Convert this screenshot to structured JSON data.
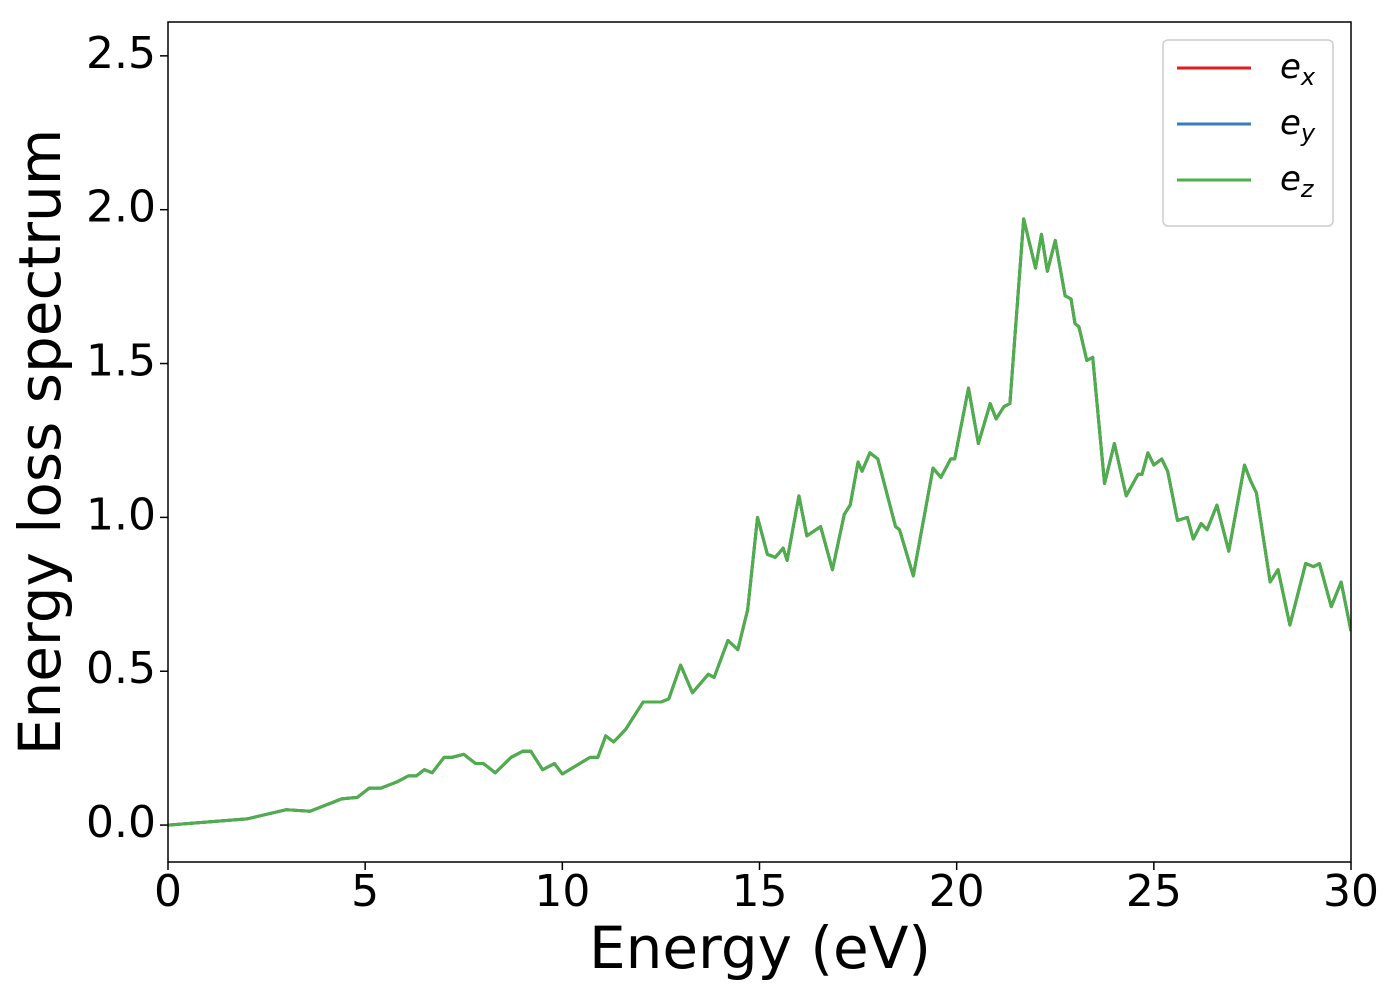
{
  "chart_data": {
    "type": "line",
    "xlabel": "Energy (eV)",
    "ylabel": "Energy loss spectrum",
    "x": [
      0,
      1,
      2,
      3,
      3.6,
      4.4,
      4.8,
      5.1,
      5.4,
      5.8,
      6.1,
      6.3,
      6.5,
      6.7,
      7.0,
      7.2,
      7.5,
      7.8,
      8.0,
      8.3,
      8.7,
      9.0,
      9.2,
      9.5,
      9.8,
      10.0,
      10.7,
      10.9,
      11.1,
      11.3,
      11.6,
      12.05,
      12.5,
      12.7,
      13.0,
      13.3,
      13.7,
      13.85,
      14.2,
      14.45,
      14.7,
      14.95,
      15.2,
      15.4,
      15.6,
      15.7,
      16.0,
      16.2,
      16.55,
      16.85,
      17.15,
      17.3,
      17.5,
      17.6,
      17.8,
      18.0,
      18.45,
      18.55,
      18.9,
      19.4,
      19.6,
      19.85,
      19.95,
      20.3,
      20.55,
      20.85,
      21.0,
      21.2,
      21.35,
      21.7,
      22.0,
      22.15,
      22.3,
      22.5,
      22.75,
      22.9,
      23.0,
      23.1,
      23.3,
      23.45,
      23.75,
      24.0,
      24.3,
      24.6,
      24.7,
      24.85,
      25.0,
      25.2,
      25.35,
      25.6,
      25.85,
      26.0,
      26.2,
      26.35,
      26.6,
      26.9,
      27.3,
      27.45,
      27.6,
      27.95,
      28.15,
      28.45,
      28.85,
      29.05,
      29.2,
      29.5,
      29.75,
      30.0
    ],
    "series": [
      {
        "name": "ex",
        "color": "#e41a1c",
        "values": [
          0,
          0.01,
          0.02,
          0.05,
          0.045,
          0.085,
          0.09,
          0.12,
          0.12,
          0.14,
          0.16,
          0.16,
          0.18,
          0.17,
          0.22,
          0.22,
          0.23,
          0.2,
          0.2,
          0.17,
          0.22,
          0.24,
          0.24,
          0.18,
          0.2,
          0.166,
          0.22,
          0.22,
          0.29,
          0.27,
          0.31,
          0.4,
          0.4,
          0.41,
          0.52,
          0.43,
          0.49,
          0.48,
          0.6,
          0.57,
          0.7,
          1.0,
          0.88,
          0.87,
          0.9,
          0.86,
          1.07,
          0.94,
          0.97,
          0.83,
          1.01,
          1.04,
          1.18,
          1.15,
          1.21,
          1.19,
          0.97,
          0.96,
          0.81,
          1.16,
          1.13,
          1.19,
          1.19,
          1.42,
          1.24,
          1.37,
          1.32,
          1.36,
          1.37,
          1.97,
          1.81,
          1.92,
          1.8,
          1.9,
          1.72,
          1.71,
          1.63,
          1.62,
          1.51,
          1.52,
          1.11,
          1.24,
          1.07,
          1.14,
          1.14,
          1.21,
          1.17,
          1.19,
          1.15,
          0.99,
          1.0,
          0.93,
          0.98,
          0.96,
          1.04,
          0.89,
          1.17,
          1.12,
          1.08,
          0.79,
          0.83,
          0.65,
          0.85,
          0.84,
          0.85,
          0.71,
          0.79,
          0.63
        ]
      },
      {
        "name": "ey",
        "color": "#377eb8",
        "values": [
          0,
          0.01,
          0.02,
          0.05,
          0.045,
          0.085,
          0.09,
          0.12,
          0.12,
          0.14,
          0.16,
          0.16,
          0.18,
          0.17,
          0.22,
          0.22,
          0.23,
          0.2,
          0.2,
          0.17,
          0.22,
          0.24,
          0.24,
          0.18,
          0.2,
          0.166,
          0.22,
          0.22,
          0.29,
          0.27,
          0.31,
          0.4,
          0.4,
          0.41,
          0.52,
          0.43,
          0.49,
          0.48,
          0.6,
          0.57,
          0.7,
          1.0,
          0.88,
          0.87,
          0.9,
          0.86,
          1.07,
          0.94,
          0.97,
          0.83,
          1.01,
          1.04,
          1.18,
          1.15,
          1.21,
          1.19,
          0.97,
          0.96,
          0.81,
          1.16,
          1.13,
          1.19,
          1.19,
          1.42,
          1.24,
          1.37,
          1.32,
          1.36,
          1.37,
          1.97,
          1.81,
          1.92,
          1.8,
          1.9,
          1.72,
          1.71,
          1.63,
          1.62,
          1.51,
          1.52,
          1.11,
          1.24,
          1.07,
          1.14,
          1.14,
          1.21,
          1.17,
          1.19,
          1.15,
          0.99,
          1.0,
          0.93,
          0.98,
          0.96,
          1.04,
          0.89,
          1.17,
          1.12,
          1.08,
          0.79,
          0.83,
          0.65,
          0.85,
          0.84,
          0.85,
          0.71,
          0.79,
          0.63
        ]
      },
      {
        "name": "ez",
        "color": "#4daf4a",
        "values": [
          0,
          0.01,
          0.02,
          0.05,
          0.045,
          0.085,
          0.09,
          0.12,
          0.12,
          0.14,
          0.16,
          0.16,
          0.18,
          0.17,
          0.22,
          0.22,
          0.23,
          0.2,
          0.2,
          0.17,
          0.22,
          0.24,
          0.24,
          0.18,
          0.2,
          0.166,
          0.22,
          0.22,
          0.29,
          0.27,
          0.31,
          0.4,
          0.4,
          0.41,
          0.52,
          0.43,
          0.49,
          0.48,
          0.6,
          0.57,
          0.7,
          1.0,
          0.88,
          0.87,
          0.9,
          0.86,
          1.07,
          0.94,
          0.97,
          0.83,
          1.01,
          1.04,
          1.18,
          1.15,
          1.21,
          1.19,
          0.97,
          0.96,
          0.81,
          1.16,
          1.13,
          1.19,
          1.19,
          1.42,
          1.24,
          1.37,
          1.32,
          1.36,
          1.37,
          1.97,
          1.81,
          1.92,
          1.8,
          1.9,
          1.72,
          1.71,
          1.63,
          1.62,
          1.51,
          1.52,
          1.11,
          1.24,
          1.07,
          1.14,
          1.14,
          1.21,
          1.17,
          1.19,
          1.15,
          0.99,
          1.0,
          0.93,
          0.98,
          0.96,
          1.04,
          0.89,
          1.17,
          1.12,
          1.08,
          0.79,
          0.83,
          0.65,
          0.85,
          0.84,
          0.85,
          0.71,
          0.79,
          0.63
        ]
      }
    ],
    "xlim": [
      0,
      30
    ],
    "xticks": [
      0,
      5,
      10,
      15,
      20,
      25,
      30
    ],
    "ylim": [
      -0.12,
      2.61
    ],
    "yticks": [
      {
        "value": 0,
        "label": "0.0"
      },
      0.5,
      {
        "value": 1,
        "label": "1.0"
      },
      1.5,
      {
        "value": 2,
        "label": "2.0"
      },
      2.5
    ],
    "legend": "upper right",
    "grid": false
  }
}
